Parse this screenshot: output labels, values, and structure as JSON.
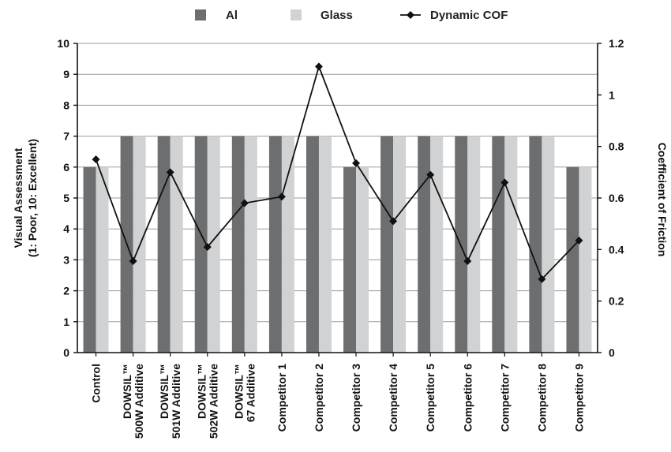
{
  "chart_data": {
    "type": "bar",
    "categories": [
      [
        "Control"
      ],
      [
        "DOWSIL™",
        "500W Additive"
      ],
      [
        "DOWSIL™",
        "501W Additive"
      ],
      [
        "DOWSIL™",
        "502W Additive"
      ],
      [
        "DOWSIL™",
        "67 Additive"
      ],
      [
        "Competitor 1"
      ],
      [
        "Competitor 2"
      ],
      [
        "Competitor 3"
      ],
      [
        "Competitor 4"
      ],
      [
        "Competitor 5"
      ],
      [
        "Competitor 6"
      ],
      [
        "Competitor 7"
      ],
      [
        "Competitor 8"
      ],
      [
        "Competitor 9"
      ]
    ],
    "series": [
      {
        "name": "Al",
        "type": "bar",
        "axis": "left",
        "color": "#6d6e70",
        "values": [
          6,
          7,
          7,
          7,
          7,
          7,
          7,
          6,
          7,
          7,
          7,
          7,
          7,
          6
        ]
      },
      {
        "name": "Glass",
        "type": "bar",
        "axis": "left",
        "color": "#d1d2d3",
        "values": [
          6,
          7,
          7,
          7,
          7,
          7,
          7,
          6,
          7,
          7,
          7,
          7,
          7,
          6
        ]
      },
      {
        "name": "Dynamic COF",
        "type": "line",
        "axis": "right",
        "color": "#111111",
        "values": [
          0.75,
          0.355,
          0.7,
          0.41,
          0.58,
          0.605,
          1.11,
          0.735,
          0.51,
          0.69,
          0.355,
          0.66,
          0.285,
          0.435
        ]
      }
    ],
    "ylabel": [
      "Visual Assessment",
      "(1: Poor, 10: Excellent)"
    ],
    "y2label": "Coefficient of Friction",
    "xlabel": "",
    "ylim": [
      0,
      10
    ],
    "y2lim": [
      0,
      1.2
    ],
    "yticks": [
      0,
      1,
      2,
      3,
      4,
      5,
      6,
      7,
      8,
      9,
      10
    ],
    "y2ticks": [
      "0",
      "0.2",
      "0.4",
      "0.6",
      "0.8",
      "1",
      "1.2"
    ],
    "grid": true,
    "legend": "top"
  }
}
